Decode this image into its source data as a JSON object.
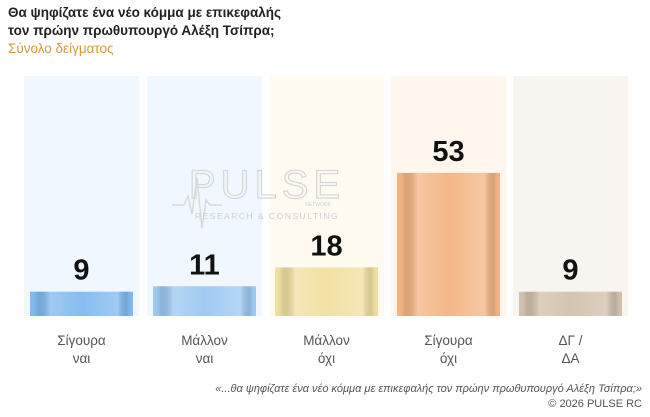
{
  "header": {
    "title_line1": "Θα ψηφίζατε ένα νέο κόμμα με επικεφαλής",
    "title_line2": "τον πρώην πρωθυπουργό Αλέξη Τσίπρα;",
    "subtitle": "Σύνολο δείγματος"
  },
  "watermark": {
    "brand": "PULSE",
    "tagline": "RESEARCH & CONSULTING",
    "small": "NETWORK"
  },
  "chart_data": {
    "type": "bar",
    "categories": [
      [
        "Σίγουρα",
        "ναι"
      ],
      [
        "Μάλλον",
        "ναι"
      ],
      [
        "Μάλλον",
        "όχι"
      ],
      [
        "Σίγουρα",
        "όχι"
      ],
      [
        "ΔΓ /",
        "ΔΑ"
      ]
    ],
    "values": [
      9,
      11,
      18,
      53,
      9
    ],
    "ylim": [
      0,
      100
    ],
    "colors": {
      "bars": [
        "#7fbaf0",
        "#9cc8f2",
        "#f2dfa0",
        "#f3b482",
        "#d2c0ac"
      ],
      "columns": [
        "#f1f7fe",
        "#f1f7fe",
        "#fffbf1",
        "#fff6ee",
        "#f8f5f1"
      ]
    }
  },
  "footer": {
    "question": "«...θα ψηφίζατε ένα νέο κόμμα με επικεφαλής τον πρώην πρωθυπουργό Αλέξη Τσίπρα;»",
    "copyright": "©  2026  PULSE RC"
  }
}
